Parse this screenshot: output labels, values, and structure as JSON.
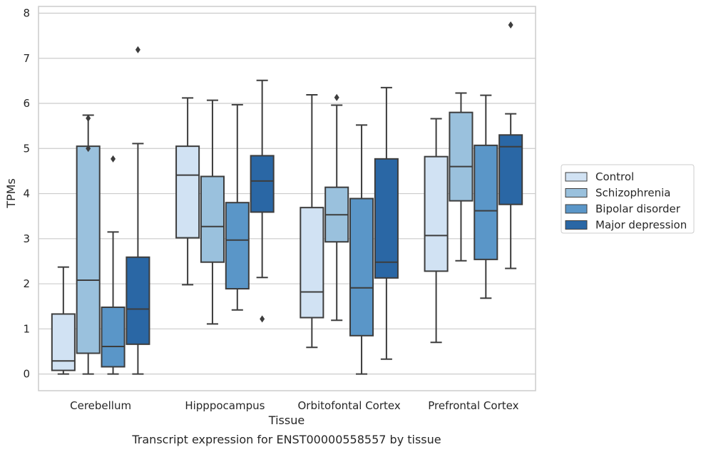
{
  "caption": "Transcript expression for ENST00000558557 by tissue",
  "chart_data": {
    "type": "box",
    "xlabel": "Tissue",
    "ylabel": "TPMs",
    "ylim": [
      -0.37,
      8.15
    ],
    "yticks": [
      0,
      1,
      2,
      3,
      4,
      5,
      6,
      7,
      8
    ],
    "grid": "horizontal",
    "legend_position": "right",
    "categories": [
      "Cerebellum",
      "Hipppocampus",
      "Orbitofontal Cortex",
      "Prefrontal Cortex"
    ],
    "series": [
      {
        "name": "Control",
        "color": "#d1e2f3",
        "boxes": [
          {
            "whisker_low": 0.0,
            "q1": 0.08,
            "median": 0.29,
            "q3": 1.33,
            "whisker_high": 2.37,
            "outliers": []
          },
          {
            "whisker_low": 1.98,
            "q1": 3.02,
            "median": 4.41,
            "q3": 5.05,
            "whisker_high": 6.12,
            "outliers": []
          },
          {
            "whisker_low": 0.59,
            "q1": 1.25,
            "median": 1.82,
            "q3": 3.69,
            "whisker_high": 6.19,
            "outliers": []
          },
          {
            "whisker_low": 0.7,
            "q1": 2.28,
            "median": 3.07,
            "q3": 4.82,
            "whisker_high": 5.66,
            "outliers": []
          }
        ]
      },
      {
        "name": "Schizophrenia",
        "color": "#9ac1dd",
        "boxes": [
          {
            "whisker_low": 0.0,
            "q1": 0.46,
            "median": 2.08,
            "q3": 5.05,
            "whisker_high": 5.74,
            "outliers": [
              5.67,
              5.0
            ]
          },
          {
            "whisker_low": 1.11,
            "q1": 2.48,
            "median": 3.27,
            "q3": 4.38,
            "whisker_high": 6.07,
            "outliers": []
          },
          {
            "whisker_low": 1.19,
            "q1": 2.93,
            "median": 3.53,
            "q3": 4.14,
            "whisker_high": 5.96,
            "outliers": [
              6.13
            ]
          },
          {
            "whisker_low": 2.51,
            "q1": 3.84,
            "median": 4.6,
            "q3": 5.8,
            "whisker_high": 6.23,
            "outliers": []
          }
        ]
      },
      {
        "name": "Bipolar disorder",
        "color": "#5a96c8",
        "boxes": [
          {
            "whisker_low": 0.0,
            "q1": 0.16,
            "median": 0.61,
            "q3": 1.48,
            "whisker_high": 3.15,
            "outliers": [
              4.77
            ]
          },
          {
            "whisker_low": 1.42,
            "q1": 1.89,
            "median": 2.97,
            "q3": 3.8,
            "whisker_high": 5.97,
            "outliers": []
          },
          {
            "whisker_low": 0.0,
            "q1": 0.85,
            "median": 1.91,
            "q3": 3.89,
            "whisker_high": 5.52,
            "outliers": []
          },
          {
            "whisker_low": 1.68,
            "q1": 2.54,
            "median": 3.62,
            "q3": 5.07,
            "whisker_high": 6.18,
            "outliers": []
          }
        ]
      },
      {
        "name": "Major depression",
        "color": "#2a67a5",
        "boxes": [
          {
            "whisker_low": 0.0,
            "q1": 0.66,
            "median": 1.44,
            "q3": 2.59,
            "whisker_high": 5.11,
            "outliers": [
              7.19
            ]
          },
          {
            "whisker_low": 2.14,
            "q1": 3.59,
            "median": 4.28,
            "q3": 4.84,
            "whisker_high": 6.51,
            "outliers": [
              1.22
            ]
          },
          {
            "whisker_low": 0.33,
            "q1": 2.13,
            "median": 2.48,
            "q3": 4.77,
            "whisker_high": 6.35,
            "outliers": []
          },
          {
            "whisker_low": 2.34,
            "q1": 3.76,
            "median": 5.04,
            "q3": 5.3,
            "whisker_high": 5.77,
            "outliers": [
              7.74
            ]
          }
        ]
      }
    ]
  }
}
